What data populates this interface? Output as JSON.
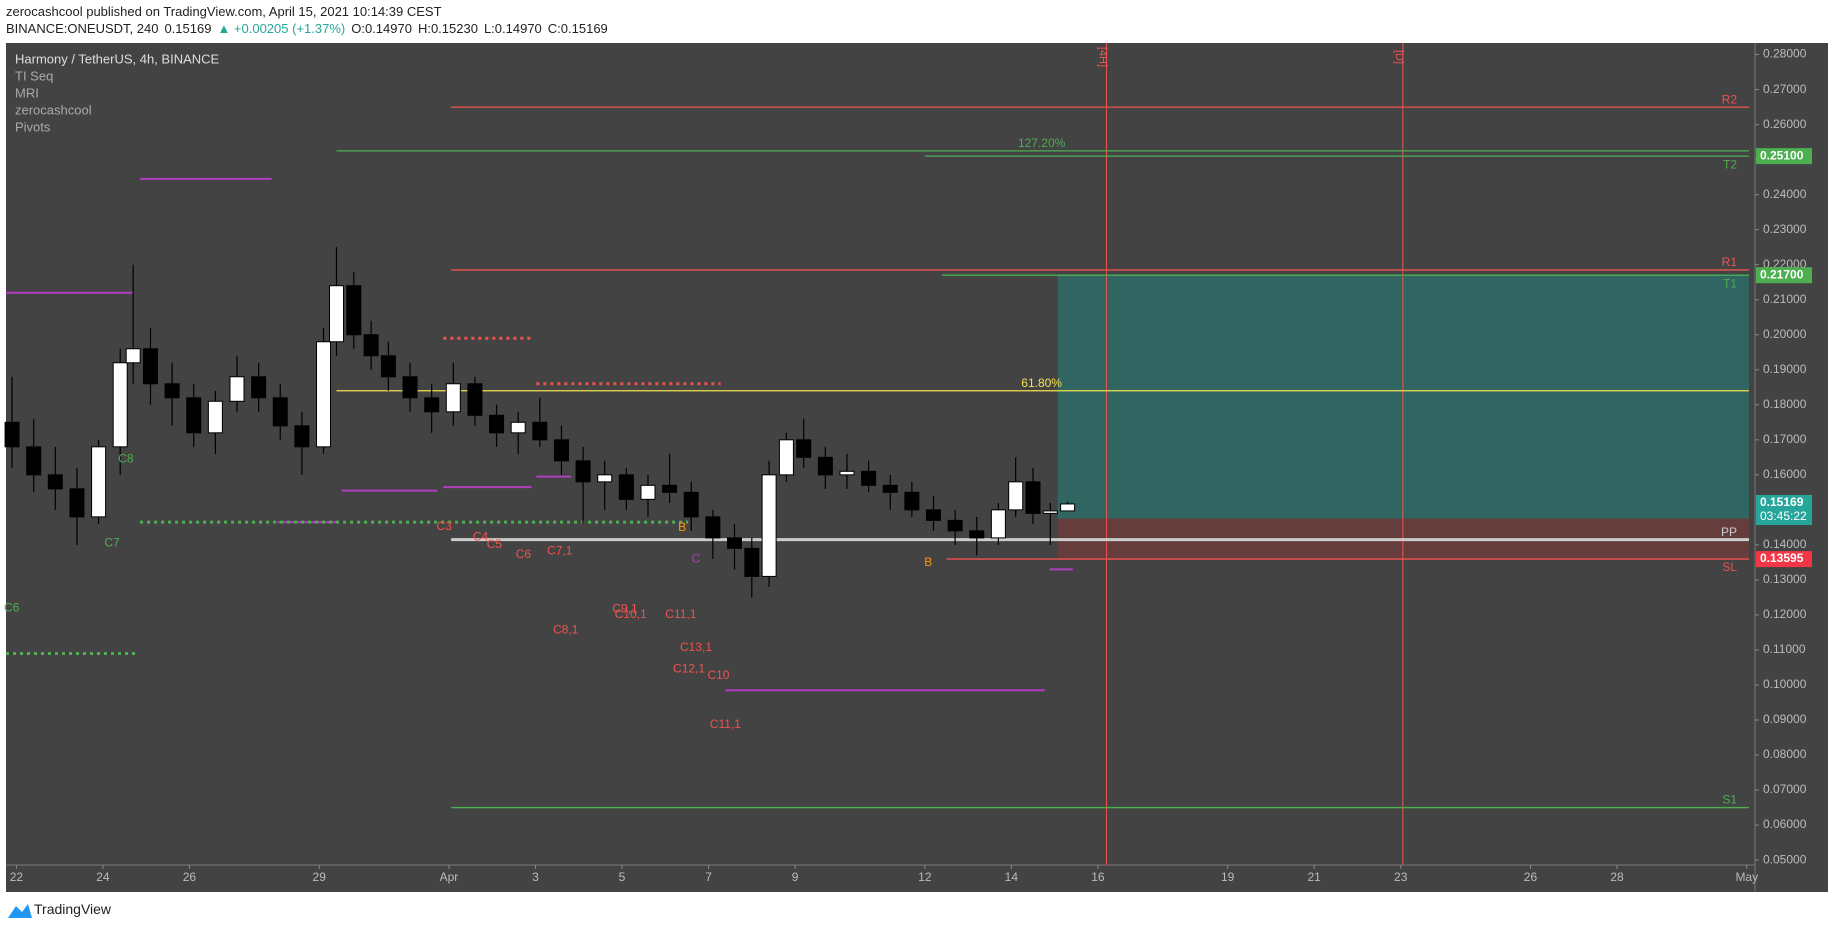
{
  "header": {
    "publisher": "zerocashcool published on TradingView.com, April 15, 2021 10:14:39 CEST",
    "symbol": "BINANCE:ONEUSDT, 240",
    "last": "0.15169",
    "change": "▲ +0.00205 (+1.37%)",
    "open": "O:0.14970",
    "high": "H:0.15230",
    "low": "L:0.14970",
    "close": "C:0.15169"
  },
  "footer": {
    "brand": "TradingView"
  },
  "chart_data": {
    "type": "candlestick",
    "legend": [
      "Harmony / TetherUS, 4h, BINANCE",
      "TI Seq",
      "MRI",
      "zerocashcool",
      "Pivots"
    ],
    "x": [
      -0.1,
      0.4,
      0.9,
      1.4,
      1.9,
      2.4,
      2.7,
      3.1,
      3.6,
      4.1,
      4.6,
      5.1,
      5.6,
      6.1,
      6.6,
      7.1,
      7.4,
      7.8,
      8.2,
      8.6,
      9.1,
      9.6,
      10.1,
      10.6,
      11.1,
      11.6,
      12.1,
      12.6,
      13.1,
      13.6,
      14.1,
      14.6,
      15.1,
      15.6,
      16.1,
      16.6,
      17.0,
      17.4,
      17.8,
      18.2,
      18.7,
      19.2,
      19.7,
      20.2,
      20.7,
      21.2,
      21.7,
      22.2,
      22.7,
      23.1,
      23.5,
      23.9,
      24.3
    ],
    "open": [
      0.175,
      0.168,
      0.16,
      0.156,
      0.148,
      0.168,
      0.192,
      0.196,
      0.186,
      0.182,
      0.172,
      0.181,
      0.188,
      0.182,
      0.174,
      0.168,
      0.198,
      0.214,
      0.2,
      0.194,
      0.188,
      0.182,
      0.178,
      0.186,
      0.177,
      0.172,
      0.175,
      0.17,
      0.164,
      0.158,
      0.16,
      0.153,
      0.157,
      0.155,
      0.148,
      0.142,
      0.139,
      0.131,
      0.16,
      0.17,
      0.165,
      0.16,
      0.161,
      0.157,
      0.155,
      0.15,
      0.147,
      0.144,
      0.142,
      0.15,
      0.158,
      0.149,
      0.1497
    ],
    "high": [
      0.188,
      0.176,
      0.168,
      0.162,
      0.17,
      0.196,
      0.22,
      0.202,
      0.192,
      0.186,
      0.184,
      0.194,
      0.192,
      0.186,
      0.178,
      0.202,
      0.225,
      0.218,
      0.204,
      0.198,
      0.192,
      0.186,
      0.192,
      0.188,
      0.18,
      0.178,
      0.182,
      0.174,
      0.168,
      0.164,
      0.162,
      0.16,
      0.166,
      0.158,
      0.15,
      0.146,
      0.142,
      0.164,
      0.172,
      0.176,
      0.168,
      0.166,
      0.164,
      0.16,
      0.158,
      0.154,
      0.15,
      0.148,
      0.152,
      0.165,
      0.162,
      0.152,
      0.1523
    ],
    "low": [
      0.162,
      0.155,
      0.15,
      0.14,
      0.146,
      0.16,
      0.186,
      0.18,
      0.174,
      0.168,
      0.166,
      0.178,
      0.178,
      0.17,
      0.16,
      0.166,
      0.194,
      0.196,
      0.19,
      0.184,
      0.178,
      0.172,
      0.174,
      0.174,
      0.168,
      0.166,
      0.168,
      0.16,
      0.146,
      0.15,
      0.15,
      0.148,
      0.152,
      0.144,
      0.136,
      0.133,
      0.125,
      0.128,
      0.158,
      0.162,
      0.156,
      0.156,
      0.155,
      0.15,
      0.148,
      0.144,
      0.14,
      0.137,
      0.14,
      0.148,
      0.146,
      0.14,
      0.1497
    ],
    "close": [
      0.168,
      0.16,
      0.156,
      0.148,
      0.168,
      0.192,
      0.196,
      0.186,
      0.182,
      0.172,
      0.181,
      0.188,
      0.182,
      0.174,
      0.168,
      0.198,
      0.214,
      0.2,
      0.194,
      0.188,
      0.182,
      0.178,
      0.186,
      0.177,
      0.172,
      0.175,
      0.17,
      0.164,
      0.158,
      0.16,
      0.153,
      0.157,
      0.155,
      0.148,
      0.142,
      0.139,
      0.131,
      0.16,
      0.17,
      0.165,
      0.16,
      0.161,
      0.157,
      0.155,
      0.15,
      0.147,
      0.144,
      0.142,
      0.15,
      0.158,
      0.149,
      0.1497,
      0.15169
    ],
    "up_color": "#ffffff",
    "down_color": "#000000",
    "xlim": [
      -0.24,
      40.19
    ],
    "ylim": [
      0.0486,
      0.2833
    ],
    "xticks": [
      {
        "value": 0,
        "label": "22"
      },
      {
        "value": 2,
        "label": "24"
      },
      {
        "value": 4,
        "label": "26"
      },
      {
        "value": 7,
        "label": "29"
      },
      {
        "value": 10,
        "label": "Apr"
      },
      {
        "value": 12,
        "label": "3"
      },
      {
        "value": 14,
        "label": "5"
      },
      {
        "value": 16,
        "label": "7"
      },
      {
        "value": 18,
        "label": "9"
      },
      {
        "value": 21,
        "label": "12"
      },
      {
        "value": 23,
        "label": "14"
      },
      {
        "value": 25,
        "label": "16"
      },
      {
        "value": 28,
        "label": "19"
      },
      {
        "value": 30,
        "label": "21"
      },
      {
        "value": 32,
        "label": "23"
      },
      {
        "value": 35,
        "label": "26"
      },
      {
        "value": 37,
        "label": "28"
      },
      {
        "value": 40,
        "label": "May"
      }
    ],
    "yticks": [
      {
        "value": 0.05,
        "label": "0.05000"
      },
      {
        "value": 0.06,
        "label": "0.06000"
      },
      {
        "value": 0.07,
        "label": "0.07000"
      },
      {
        "value": 0.08,
        "label": "0.08000"
      },
      {
        "value": 0.09,
        "label": "0.09000"
      },
      {
        "value": 0.1,
        "label": "0.10000"
      },
      {
        "value": 0.11,
        "label": "0.11000"
      },
      {
        "value": 0.12,
        "label": "0.12000"
      },
      {
        "value": 0.13,
        "label": "0.13000"
      },
      {
        "value": 0.14,
        "label": "0.14000"
      },
      {
        "value": 0.15,
        "label": "0.15000"
      },
      {
        "value": 0.16,
        "label": "0.16000"
      },
      {
        "value": 0.17,
        "label": "0.17000"
      },
      {
        "value": 0.18,
        "label": "0.18000"
      },
      {
        "value": 0.19,
        "label": "0.19000"
      },
      {
        "value": 0.2,
        "label": "0.20000"
      },
      {
        "value": 0.21,
        "label": "0.21000"
      },
      {
        "value": 0.22,
        "label": "0.22000"
      },
      {
        "value": 0.23,
        "label": "0.23000"
      },
      {
        "value": 0.24,
        "label": "0.24000"
      },
      {
        "value": 0.25,
        "label": "0.25000"
      },
      {
        "value": 0.26,
        "label": "0.26000"
      },
      {
        "value": 0.27,
        "label": "0.27000"
      },
      {
        "value": 0.28,
        "label": "0.28000"
      }
    ],
    "pivots": [
      {
        "label": "R2",
        "value": 0.265,
        "from": 10.05,
        "color": "#ef5350"
      },
      {
        "label": "R1",
        "value": 0.2185,
        "from": 10.05,
        "color": "#ef5350"
      },
      {
        "label": "PP",
        "value": 0.1415,
        "from": 10.05,
        "color": "#cccccc"
      },
      {
        "label": "S1",
        "value": 0.065,
        "from": 10.05,
        "color": "#4caf50"
      }
    ],
    "targets": [
      {
        "label": "T2",
        "value": 0.251,
        "from": 21.0,
        "color": "#4caf50"
      },
      {
        "label": "T1",
        "value": 0.217,
        "from": 21.4,
        "color": "#4caf50"
      },
      {
        "label": "SL",
        "value": 0.13595,
        "from": 21.5,
        "color": "#ef5350"
      }
    ],
    "fib_levels": [
      {
        "label": "127.20%",
        "value": 0.2525,
        "from": 7.4,
        "at": 23.7,
        "color": "#4caf50"
      },
      {
        "label": "61.80%",
        "value": 0.184,
        "from": 7.4,
        "at": 23.7,
        "color": "#f5e050"
      }
    ],
    "position": {
      "target": 0.217,
      "entry": 0.1475,
      "stop": 0.13595,
      "from": 24.07,
      "profit_color": "#2e6b66",
      "loss_color": "#6b3c3c"
    },
    "segments": [
      {
        "value": 0.2445,
        "from": 2.86,
        "to": 5.9,
        "color": "#b03fc0",
        "style": "solid"
      },
      {
        "value": 0.212,
        "from": -0.24,
        "to": 2.72,
        "color": "#b03fc0",
        "style": "solid"
      },
      {
        "value": 0.1555,
        "from": 7.52,
        "to": 9.73,
        "color": "#b03fc0",
        "style": "solid"
      },
      {
        "value": 0.1565,
        "from": 9.87,
        "to": 11.91,
        "color": "#b03fc0",
        "style": "solid"
      },
      {
        "value": 0.1595,
        "from": 12.02,
        "to": 12.83,
        "color": "#b03fc0",
        "style": "solid"
      },
      {
        "value": 0.1465,
        "from": 6.04,
        "to": 7.44,
        "color": "#b03fc0",
        "style": "solid"
      },
      {
        "value": 0.0985,
        "from": 16.39,
        "to": 23.77,
        "color": "#b03fc0",
        "style": "solid"
      },
      {
        "value": 0.133,
        "from": 23.88,
        "to": 24.42,
        "color": "#b03fc0",
        "style": "solid"
      },
      {
        "value": 0.1465,
        "from": 2.86,
        "to": 15.53,
        "color": "#4caf50",
        "style": "dotted"
      },
      {
        "value": 0.109,
        "from": -0.24,
        "to": 2.78,
        "color": "#4caf50",
        "style": "dotted"
      },
      {
        "value": 0.199,
        "from": 9.87,
        "to": 11.91,
        "color": "#ef5350",
        "style": "dotted"
      },
      {
        "value": 0.186,
        "from": 12.02,
        "to": 16.28,
        "color": "#ef5350",
        "style": "dotted"
      }
    ],
    "annotations": [
      {
        "text": "C3",
        "x": 9.89,
        "y": 0.1452,
        "color": "#ef5350"
      },
      {
        "text": "C4",
        "x": 10.73,
        "y": 0.1422,
        "color": "#ef5350"
      },
      {
        "text": "C5",
        "x": 11.05,
        "y": 0.14,
        "color": "#ef5350"
      },
      {
        "text": "C6",
        "x": 11.72,
        "y": 0.1372,
        "color": "#ef5350"
      },
      {
        "text": "C7,1",
        "x": 12.56,
        "y": 0.1382,
        "color": "#ef5350"
      },
      {
        "text": "C8,1",
        "x": 12.7,
        "y": 0.1156,
        "color": "#ef5350"
      },
      {
        "text": "C9,1",
        "x": 14.07,
        "y": 0.1216,
        "color": "#ef5350"
      },
      {
        "text": "C10,1",
        "x": 14.2,
        "y": 0.12,
        "color": "#ef5350"
      },
      {
        "text": "C11,1",
        "x": 15.36,
        "y": 0.12,
        "color": "#ef5350"
      },
      {
        "text": "C13,1",
        "x": 15.71,
        "y": 0.1106,
        "color": "#ef5350"
      },
      {
        "text": "C12,1",
        "x": 15.55,
        "y": 0.1044,
        "color": "#ef5350"
      },
      {
        "text": "C10",
        "x": 16.23,
        "y": 0.1026,
        "color": "#ef5350"
      },
      {
        "text": "C11,1",
        "x": 16.39,
        "y": 0.0886,
        "color": "#ef5350"
      },
      {
        "text": "B",
        "x": 15.39,
        "y": 0.1449,
        "color": "#ff9800"
      },
      {
        "text": "C",
        "x": 15.71,
        "y": 0.1359,
        "color": "#b03fc0"
      },
      {
        "text": "B",
        "x": 21.08,
        "y": 0.1349,
        "color": "#ff9800"
      },
      {
        "text": "C7",
        "x": 2.21,
        "y": 0.1405,
        "color": "#4caf50"
      },
      {
        "text": "C8",
        "x": 2.53,
        "y": 0.1645,
        "color": "#4caf50"
      },
      {
        "text": "C6",
        "x": -0.11,
        "y": 0.1219,
        "color": "#4caf50"
      }
    ],
    "session_breaks": [
      {
        "x": 25.2,
        "label": "[4H]"
      },
      {
        "x": 32.05,
        "label": "[D]"
      }
    ],
    "break_color": "#ef5350",
    "axis_labels": [
      {
        "value": 0.251,
        "label": "0.25100",
        "color": "#4caf50"
      },
      {
        "value": 0.217,
        "label": "0.21700",
        "color": "#4caf50"
      },
      {
        "value": 0.13595,
        "label": "0.13595",
        "color": "#f23645"
      }
    ],
    "last_price": {
      "value": 0.15169,
      "label": "0.15169",
      "countdown": "03:45:22",
      "color": "#26a69a"
    }
  }
}
